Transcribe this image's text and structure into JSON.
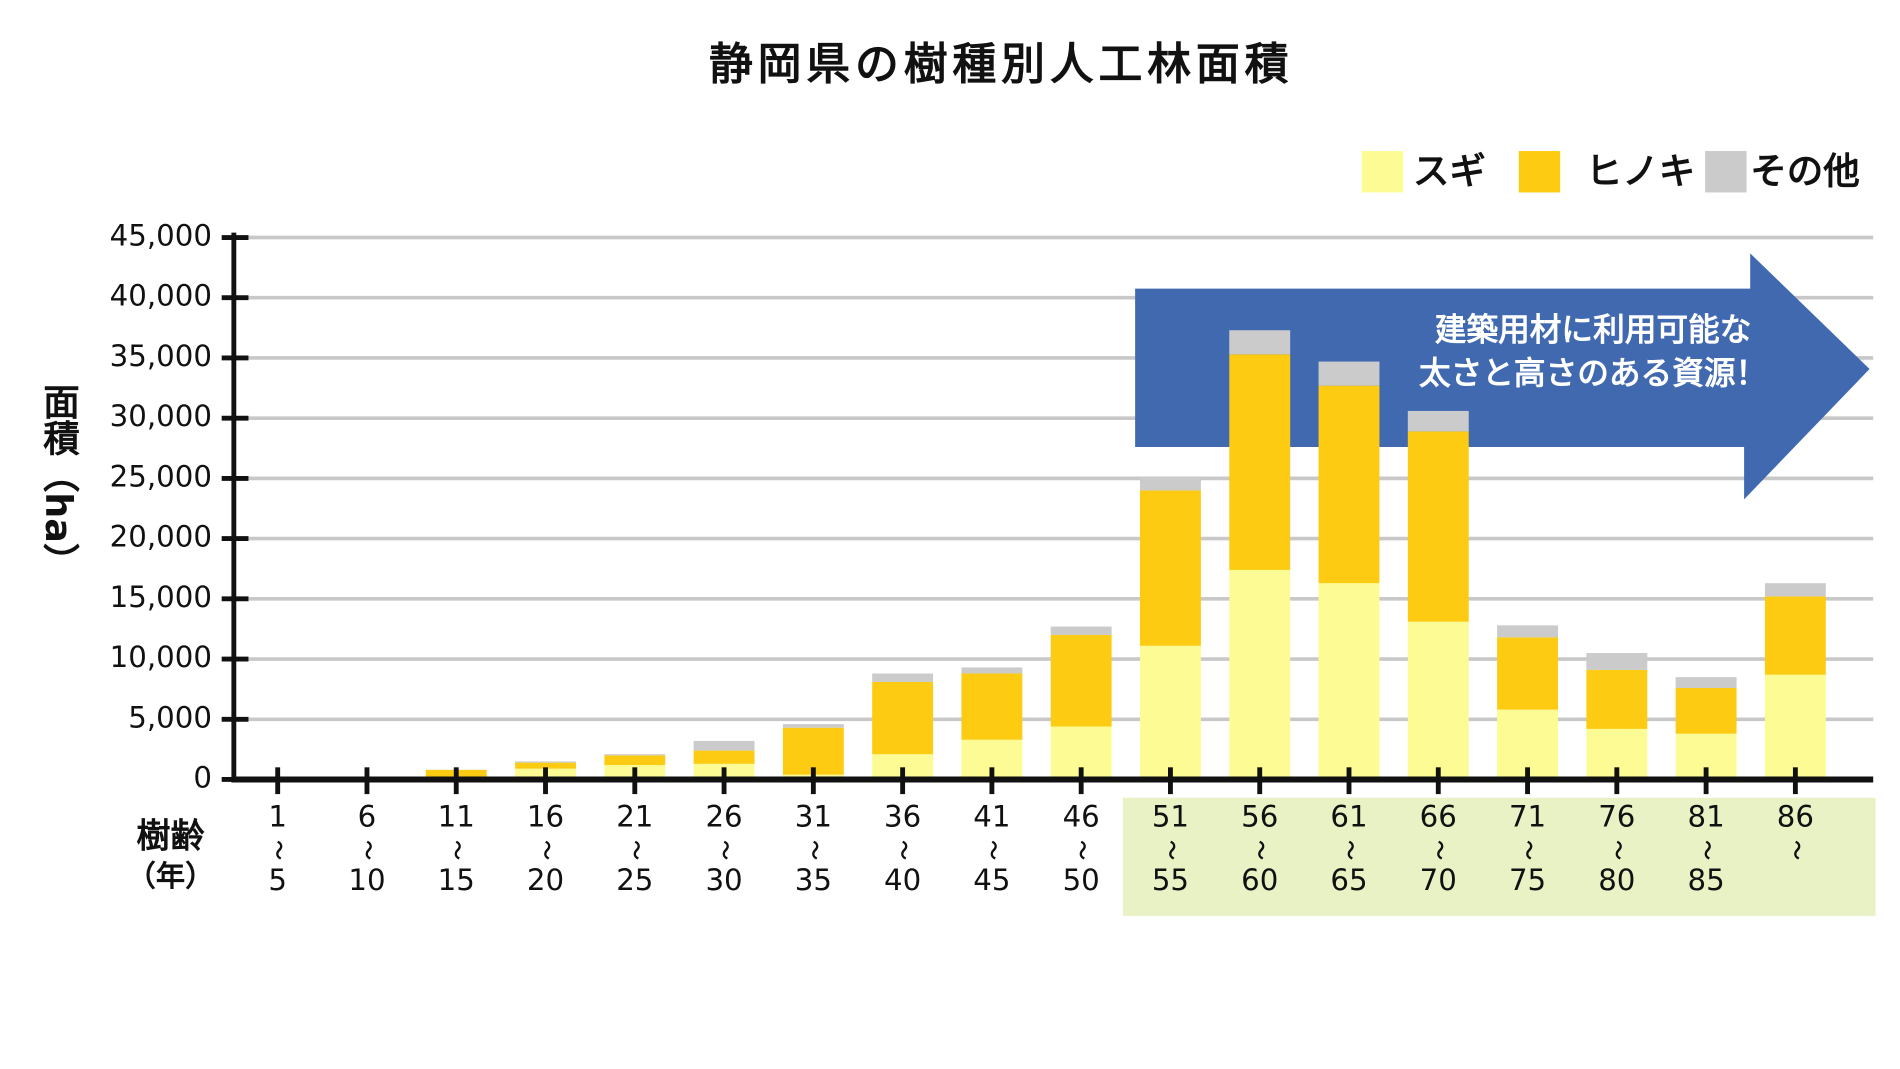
{
  "chart_data": {
    "type": "stacked_bar",
    "title": "静岡県の樹種別人工林面積",
    "y_label": "面積（ha）",
    "x_label": [
      "樹齢",
      "（年）"
    ],
    "annotation": [
      "建築用材に利用可能な",
      "太さと高さのある資源！"
    ],
    "categories": [
      [
        "1",
        "〜",
        "5"
      ],
      [
        "6",
        "〜",
        "10"
      ],
      [
        "11",
        "〜",
        "15"
      ],
      [
        "16",
        "〜",
        "20"
      ],
      [
        "21",
        "〜",
        "25"
      ],
      [
        "26",
        "〜",
        "30"
      ],
      [
        "31",
        "〜",
        "35"
      ],
      [
        "36",
        "〜",
        "40"
      ],
      [
        "41",
        "〜",
        "45"
      ],
      [
        "46",
        "〜",
        "50"
      ],
      [
        "51",
        "〜",
        "55"
      ],
      [
        "56",
        "〜",
        "60"
      ],
      [
        "61",
        "〜",
        "65"
      ],
      [
        "66",
        "〜",
        "70"
      ],
      [
        "71",
        "〜",
        "75"
      ],
      [
        "76",
        "〜",
        "80"
      ],
      [
        "81",
        "〜",
        "85"
      ],
      [
        "86",
        "〜"
      ]
    ],
    "series": [
      {
        "name": "スギ",
        "color": "#fdfc94",
        "values": [
          0,
          0,
          200,
          900,
          1200,
          1300,
          400,
          2100,
          3300,
          4400,
          11100,
          17400,
          16300,
          13100,
          5800,
          4200,
          3800,
          8700
        ]
      },
      {
        "name": "ヒノキ",
        "color": "#fdcb12",
        "values": [
          0,
          0,
          600,
          500,
          800,
          1100,
          3900,
          6000,
          5500,
          7600,
          12900,
          17900,
          16400,
          15800,
          6000,
          4900,
          3800,
          6500
        ]
      },
      {
        "name": "その他",
        "color": "#cbcbcb",
        "values": [
          0,
          0,
          0,
          100,
          100,
          800,
          300,
          700,
          500,
          700,
          1100,
          2000,
          2000,
          1700,
          1000,
          1400,
          900,
          1100
        ]
      }
    ],
    "ylim": [
      0,
      45000
    ],
    "yticks": [
      0,
      {
        "value": 5000,
        "label": "5,000"
      },
      {
        "value": 10000,
        "label": "10,000"
      },
      {
        "value": 15000,
        "label": "15,000"
      },
      {
        "value": 20000,
        "label": "20,000"
      },
      {
        "value": 25000,
        "label": "25,000"
      },
      {
        "value": 30000,
        "label": "30,000"
      },
      {
        "value": 35000,
        "label": "35,000"
      },
      {
        "value": 40000,
        "label": "40,000"
      },
      {
        "value": 45000,
        "label": "45,000"
      }
    ],
    "grid": true,
    "legend": "top-right"
  }
}
